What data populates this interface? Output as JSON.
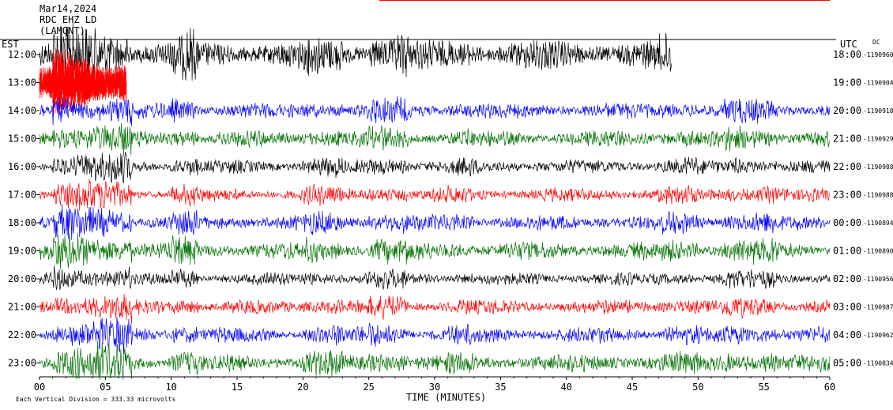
{
  "header": {
    "date": "Mar14,2024",
    "station": "RDC EHZ LD",
    "network": "(LAMONT)"
  },
  "axes": {
    "left_label": "EST",
    "right_label": "UTC",
    "dc_label": "DC",
    "x_title": "TIME (MINUTES)",
    "footer": "Each Vertical Division =  333.33 microvolts"
  },
  "colors": [
    "#000000",
    "#ff0000",
    "#0000ff",
    "#007000"
  ],
  "chart_data": {
    "type": "line",
    "title": "",
    "xlabel": "TIME (MINUTES)",
    "ylabel": "",
    "xlim": [
      0,
      60
    ],
    "x_ticks": [
      "00",
      "05",
      "10",
      "15",
      "20",
      "25",
      "30",
      "35",
      "40",
      "45",
      "50",
      "55",
      "60"
    ],
    "rows": [
      {
        "est": "12:00",
        "utc": "18:00",
        "dc": "1190960",
        "color": "black",
        "end_min": 48,
        "amp": 1.6
      },
      {
        "est": "13:00",
        "utc": "19:00",
        "dc": "1190904",
        "color": "red",
        "end_min": 6.6,
        "amp": 1.6
      },
      {
        "est": "14:00",
        "utc": "20:00",
        "dc": "1190918",
        "color": "blue",
        "end_min": 60,
        "amp": 0.9
      },
      {
        "est": "15:00",
        "utc": "21:00",
        "dc": "1190929",
        "color": "green",
        "end_min": 60,
        "amp": 0.9
      },
      {
        "est": "16:00",
        "utc": "22:00",
        "dc": "1190988",
        "color": "black",
        "end_min": 60,
        "amp": 0.8
      },
      {
        "est": "17:00",
        "utc": "23:00",
        "dc": "1190988",
        "color": "red",
        "end_min": 60,
        "amp": 0.8
      },
      {
        "est": "18:00",
        "utc": "00:00",
        "dc": "1190894",
        "color": "blue",
        "end_min": 60,
        "amp": 0.9
      },
      {
        "est": "19:00",
        "utc": "01:00",
        "dc": "1190890",
        "color": "green",
        "end_min": 60,
        "amp": 1.0
      },
      {
        "est": "20:00",
        "utc": "02:00",
        "dc": "1190956",
        "color": "black",
        "end_min": 60,
        "amp": 0.7
      },
      {
        "est": "21:00",
        "utc": "03:00",
        "dc": "1190987",
        "color": "red",
        "end_min": 60,
        "amp": 0.8
      },
      {
        "est": "22:00",
        "utc": "04:00",
        "dc": "1190962",
        "color": "blue",
        "end_min": 60,
        "amp": 0.9
      },
      {
        "est": "23:00",
        "utc": "05:00",
        "dc": "1190834",
        "color": "green",
        "end_min": 60,
        "amp": 1.0
      }
    ]
  }
}
